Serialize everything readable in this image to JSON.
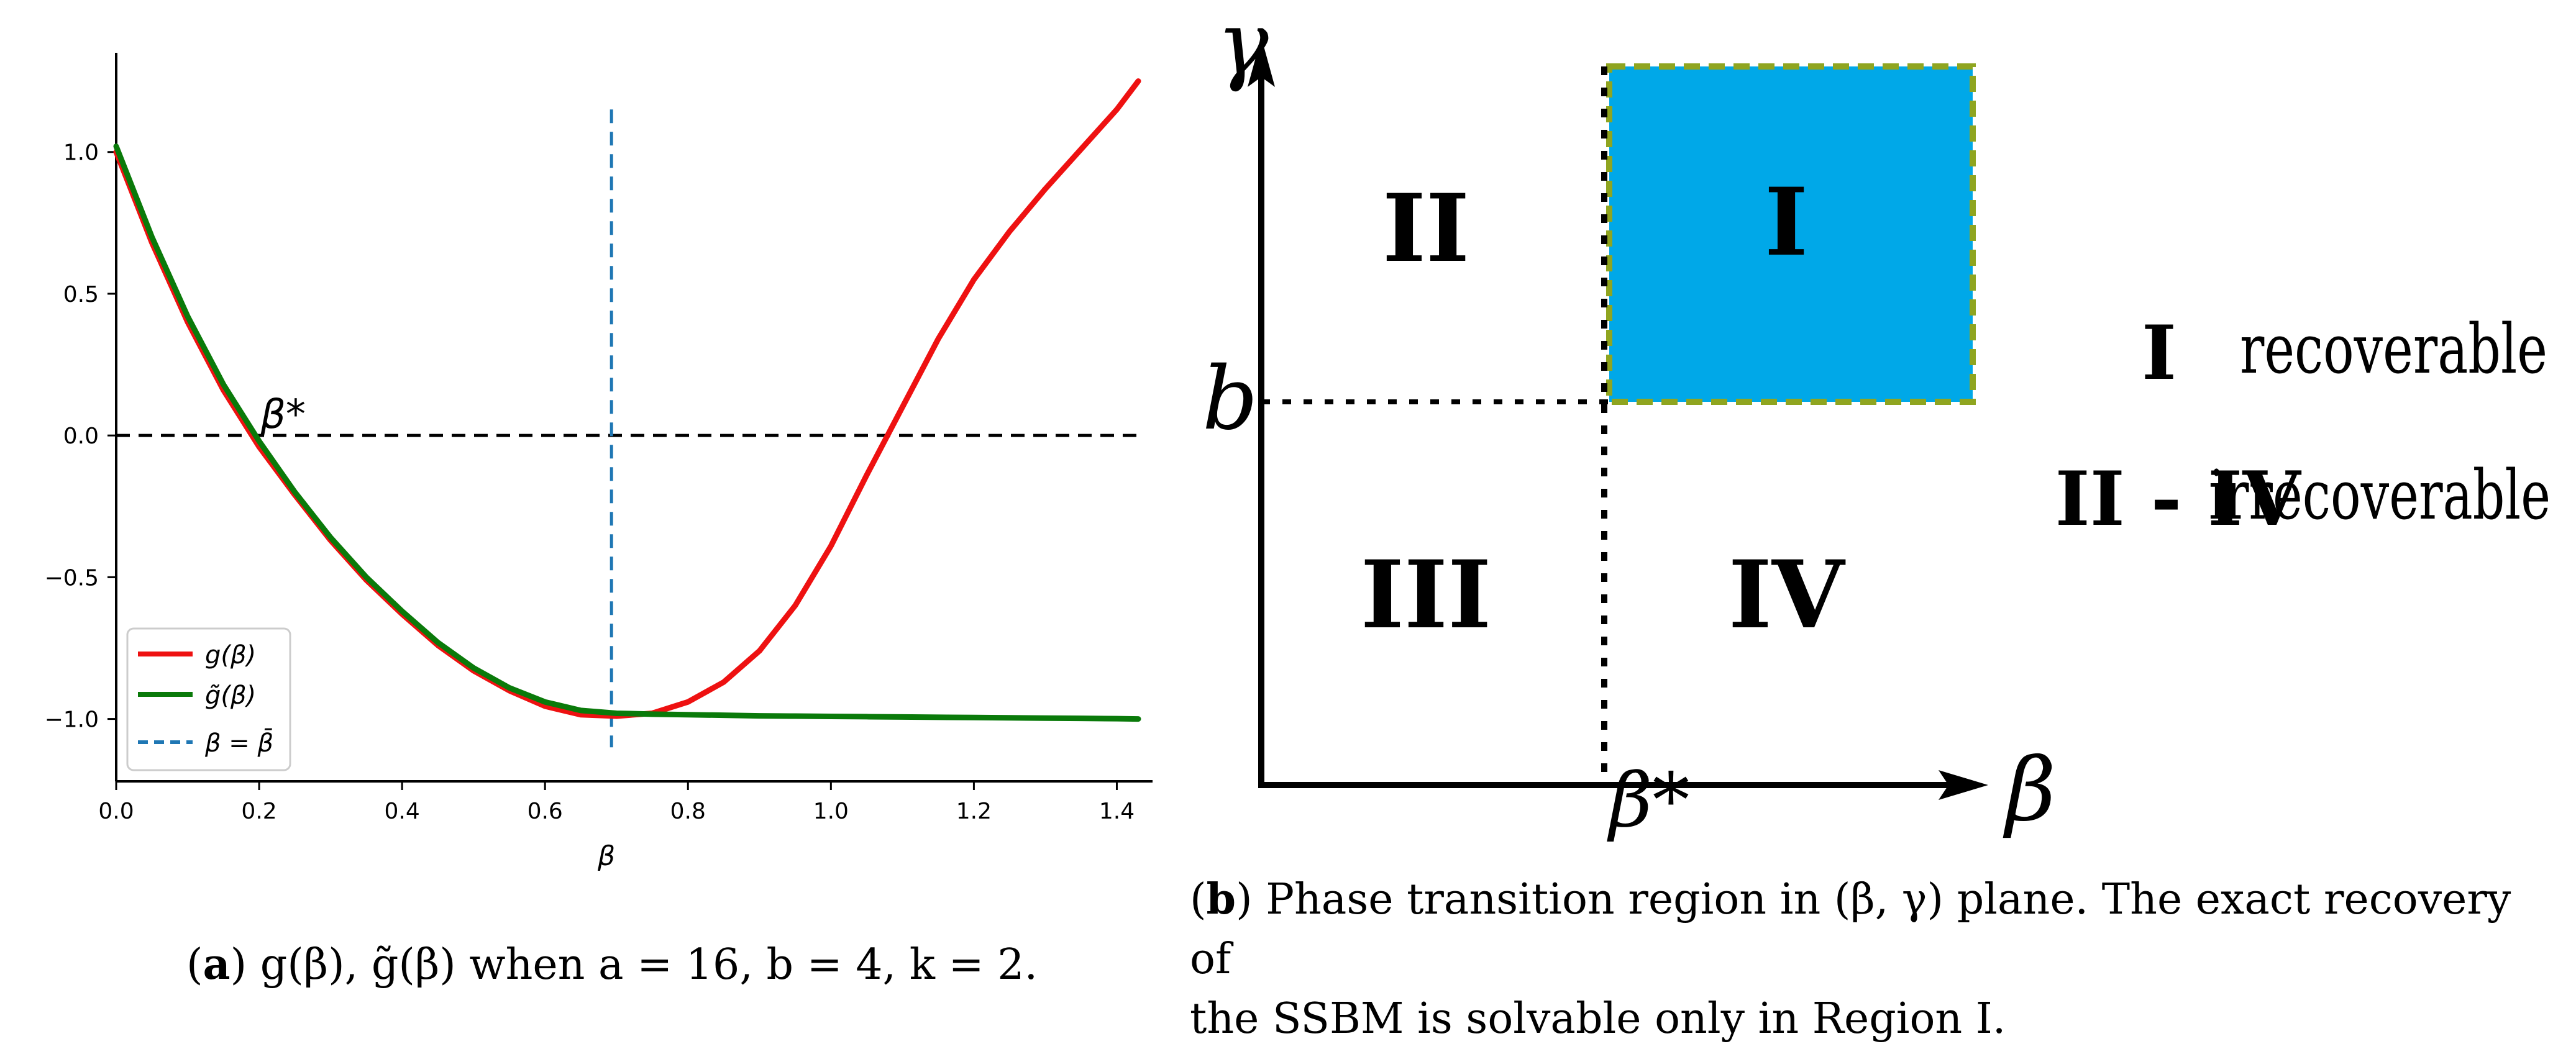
{
  "chart_data": [
    {
      "type": "line",
      "x": [
        0.0,
        0.05,
        0.1,
        0.15,
        0.2,
        0.25,
        0.3,
        0.35,
        0.4,
        0.45,
        0.5,
        0.55,
        0.6,
        0.65,
        0.7,
        0.75,
        0.8,
        0.85,
        0.9,
        0.95,
        1.0,
        1.05,
        1.1,
        1.15,
        1.2,
        1.25,
        1.3,
        1.35,
        1.4,
        1.43
      ],
      "series": [
        {
          "name": "g(β)",
          "color": "#ee1111",
          "values": [
            1.0,
            0.68,
            0.4,
            0.16,
            -0.04,
            -0.21,
            -0.37,
            -0.51,
            -0.63,
            -0.74,
            -0.83,
            -0.9,
            -0.955,
            -0.985,
            -0.99,
            -0.98,
            -0.94,
            -0.87,
            -0.76,
            -0.6,
            -0.39,
            -0.14,
            0.1,
            0.34,
            0.55,
            0.72,
            0.87,
            1.01,
            1.15,
            1.25
          ]
        },
        {
          "name": "g̃(β)",
          "color": "#0a7a0a",
          "values": [
            1.02,
            0.7,
            0.42,
            0.18,
            -0.02,
            -0.2,
            -0.36,
            -0.5,
            -0.62,
            -0.73,
            -0.82,
            -0.89,
            -0.94,
            -0.97,
            -0.98,
            -0.983,
            -0.985,
            -0.987,
            -0.989,
            -0.99,
            -0.991,
            -0.992,
            -0.993,
            -0.994,
            -0.995,
            -0.996,
            -0.997,
            -0.998,
            -0.999,
            -1.0
          ]
        }
      ],
      "hlines": [
        {
          "y": 0.0,
          "style": "dashed",
          "color": "#000000"
        }
      ],
      "vlines": [
        {
          "x": 0.693,
          "style": "dashed",
          "color": "#1f77b4",
          "name": "β = β̄"
        }
      ],
      "xlabel": "β",
      "ylabel": "",
      "xlim": [
        0.0,
        1.45
      ],
      "ylim": [
        -1.22,
        1.35
      ],
      "xticks": [
        0.0,
        0.2,
        0.4,
        0.6,
        0.8,
        1.0,
        1.2,
        1.4
      ],
      "xtick_labels": [
        "0.0",
        "0.2",
        "0.4",
        "0.6",
        "0.8",
        "1.0",
        "1.2",
        "1.4"
      ],
      "yticks": [
        1.0,
        0.5,
        0.0,
        -0.5,
        -1.0
      ],
      "ytick_labels": [
        "1.0",
        "0.5",
        "0.0",
        "−0.5",
        "−1.0"
      ],
      "annotations": [
        {
          "text": "β*",
          "x": 0.2,
          "y": 0.0
        }
      ],
      "legend": {
        "placement": "lower-left",
        "entries": [
          "g(β)",
          "g̃(β)",
          "β = β̄"
        ]
      },
      "grid": false,
      "caption": {
        "label": "a",
        "text": "g(β), g̃(β) when a = 16, b = 4, k = 2."
      }
    },
    {
      "type": "diagram",
      "axis_x_label": "β",
      "axis_y_label": "γ",
      "x_marker_label": "β*",
      "y_marker_label": "b",
      "regions": [
        {
          "label": "I",
          "fill": "#00a8e8"
        },
        {
          "label": "II"
        },
        {
          "label": "III"
        },
        {
          "label": "IV"
        }
      ],
      "legend_items": [
        {
          "key": "I",
          "desc": "recoverable"
        },
        {
          "key": "II - IV",
          "desc": "irrecoverable"
        }
      ],
      "caption": {
        "label": "b",
        "line1": "Phase transition region in (β, γ) plane. The exact recovery of",
        "line2": "the SSBM is solvable only in Region I."
      }
    }
  ]
}
